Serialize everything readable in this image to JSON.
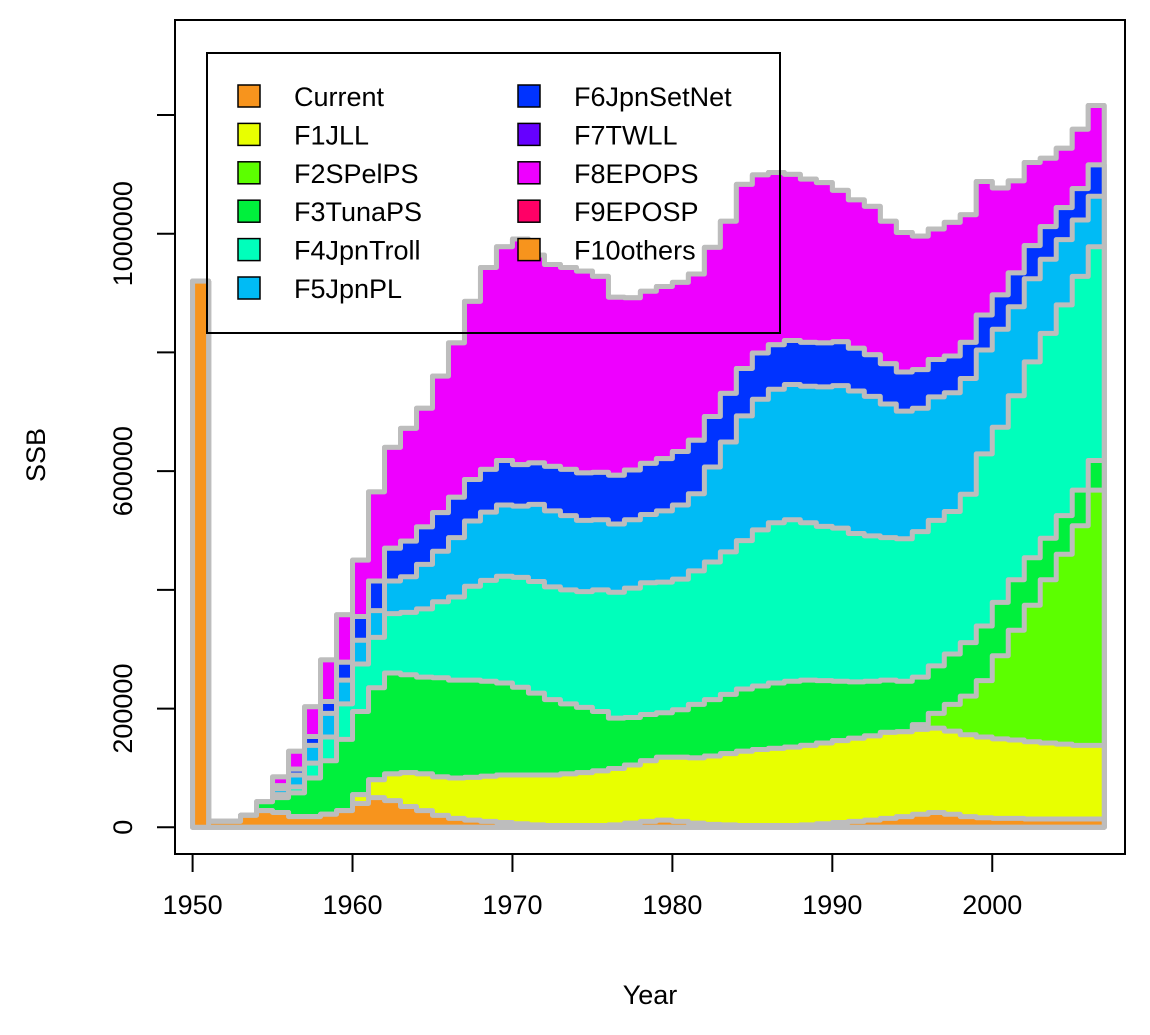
{
  "chart_data": {
    "type": "area",
    "stacked": true,
    "step": true,
    "title": "",
    "xlabel": "Year",
    "ylabel": "SSB",
    "xlim": [
      1948.9,
      2008.3
    ],
    "ylim": [
      -45000,
      1360000
    ],
    "x_ticks": [
      1950,
      1960,
      1970,
      1980,
      1990,
      2000
    ],
    "x_tick_labels": [
      "1950",
      "1960",
      "1970",
      "1980",
      "1990",
      "2000"
    ],
    "y_ticks": [
      0,
      200000,
      400000,
      600000,
      800000,
      1000000,
      1200000
    ],
    "y_tick_labels": [
      "0",
      "200000",
      "",
      "600000",
      "",
      "1000000",
      ""
    ],
    "outline_color": "#bdbdbd",
    "grid": false,
    "legend": {
      "placement": "top-left",
      "columns": 2,
      "entries": [
        "Current",
        "F1JLL",
        "F2SPelPS",
        "F3TunaPS",
        "F4JpnTroll",
        "F5JpnPL",
        "F6JpnSetNet",
        "F7TWLL",
        "F8EPOPS",
        "F9EPOSP",
        "F10others"
      ],
      "colors": [
        "#f7941d",
        "#e8ff00",
        "#5cff00",
        "#00f03c",
        "#00ffbb",
        "#00bbf5",
        "#0033ff",
        "#6600ff",
        "#ee00ff",
        "#ff0066",
        "#f7941d"
      ]
    },
    "x": [
      1950,
      1951,
      1952,
      1953,
      1954,
      1955,
      1956,
      1957,
      1958,
      1959,
      1960,
      1961,
      1962,
      1963,
      1964,
      1965,
      1966,
      1967,
      1968,
      1969,
      1970,
      1971,
      1972,
      1973,
      1974,
      1975,
      1976,
      1977,
      1978,
      1979,
      1980,
      1981,
      1982,
      1983,
      1984,
      1985,
      1986,
      1987,
      1988,
      1989,
      1990,
      1991,
      1992,
      1993,
      1994,
      1995,
      1996,
      1997,
      1998,
      1999,
      2000,
      2001,
      2002,
      2003,
      2004,
      2005,
      2006
    ],
    "series": [
      {
        "name": "Current",
        "values": [
          920000,
          0,
          0,
          0,
          0,
          0,
          0,
          0,
          0,
          0,
          0,
          0,
          0,
          0,
          0,
          0,
          0,
          0,
          0,
          0,
          0,
          0,
          0,
          0,
          0,
          0,
          0,
          0,
          0,
          0,
          0,
          0,
          0,
          0,
          0,
          0,
          0,
          0,
          0,
          0,
          0,
          0,
          0,
          0,
          0,
          0,
          0,
          0,
          0,
          0,
          0,
          0,
          0,
          0,
          0,
          0,
          0
        ]
      },
      {
        "name": "F10others",
        "values": [
          0,
          10000,
          10000,
          20000,
          28000,
          25000,
          18000,
          18000,
          22000,
          28000,
          40000,
          50000,
          45000,
          35000,
          28000,
          20000,
          15000,
          12000,
          10000,
          8000,
          6000,
          4000,
          3000,
          3000,
          3000,
          3000,
          4000,
          7000,
          10000,
          12000,
          10000,
          7000,
          5000,
          4000,
          3000,
          3000,
          3000,
          3000,
          4000,
          6000,
          8000,
          10000,
          12000,
          15000,
          18000,
          22000,
          25000,
          22000,
          18000,
          16000,
          15000,
          15000,
          14000,
          14000,
          14000,
          14000,
          14000
        ]
      },
      {
        "name": "F1JLL",
        "values": [
          0,
          0,
          0,
          0,
          0,
          0,
          0,
          0,
          0,
          0,
          15000,
          30000,
          45000,
          57000,
          62000,
          65000,
          68000,
          72000,
          76000,
          80000,
          82000,
          84000,
          85000,
          87000,
          89000,
          92000,
          95000,
          98000,
          102000,
          106000,
          108000,
          110000,
          115000,
          120000,
          125000,
          128000,
          130000,
          132000,
          134000,
          136000,
          138000,
          140000,
          142000,
          145000,
          143000,
          143000,
          142000,
          140000,
          138000,
          136000,
          134000,
          132000,
          130000,
          128000,
          126000,
          124000,
          124000
        ]
      },
      {
        "name": "F2SPelPS",
        "values": [
          0,
          0,
          0,
          0,
          0,
          0,
          0,
          0,
          0,
          0,
          0,
          0,
          0,
          0,
          0,
          0,
          0,
          0,
          0,
          0,
          0,
          0,
          0,
          0,
          0,
          0,
          0,
          0,
          0,
          0,
          0,
          0,
          0,
          0,
          0,
          0,
          0,
          0,
          0,
          0,
          0,
          0,
          0,
          0,
          0,
          8000,
          25000,
          45000,
          65000,
          95000,
          140000,
          185000,
          230000,
          275000,
          320000,
          370000,
          430000
        ]
      },
      {
        "name": "F3TunaPS",
        "values": [
          0,
          0,
          0,
          0,
          15000,
          25000,
          40000,
          65000,
          90000,
          120000,
          140000,
          155000,
          170000,
          165000,
          163000,
          167000,
          165000,
          164000,
          160000,
          155000,
          148000,
          138000,
          127000,
          118000,
          110000,
          100000,
          85000,
          80000,
          78000,
          75000,
          80000,
          90000,
          95000,
          100000,
          105000,
          107000,
          110000,
          111000,
          110000,
          105000,
          100000,
          95000,
          92000,
          88000,
          85000,
          80000,
          80000,
          85000,
          90000,
          92000,
          90000,
          85000,
          80000,
          70000,
          65000,
          60000,
          50000
        ]
      },
      {
        "name": "F4JpnTroll",
        "values": [
          0,
          0,
          0,
          0,
          0,
          5000,
          10000,
          25000,
          40000,
          60000,
          80000,
          85000,
          100000,
          105000,
          115000,
          128000,
          140000,
          158000,
          170000,
          180000,
          185000,
          188000,
          190000,
          192000,
          195000,
          205000,
          212000,
          218000,
          222000,
          220000,
          220000,
          225000,
          232000,
          240000,
          250000,
          263000,
          270000,
          272000,
          265000,
          260000,
          258000,
          250000,
          245000,
          240000,
          240000,
          245000,
          245000,
          240000,
          250000,
          290000,
          295000,
          310000,
          330000,
          345000,
          355000,
          360000,
          360000
        ]
      },
      {
        "name": "F5JpnPL",
        "values": [
          0,
          0,
          0,
          0,
          0,
          10000,
          20000,
          30000,
          40000,
          40000,
          40000,
          45000,
          55000,
          60000,
          75000,
          85000,
          100000,
          110000,
          115000,
          120000,
          120000,
          130000,
          128000,
          125000,
          120000,
          118000,
          115000,
          115000,
          115000,
          120000,
          125000,
          130000,
          160000,
          185000,
          210000,
          220000,
          225000,
          228000,
          230000,
          235000,
          240000,
          240000,
          235000,
          225000,
          215000,
          208000,
          208000,
          200000,
          195000,
          175000,
          165000,
          150000,
          140000,
          125000,
          110000,
          95000,
          85000
        ]
      },
      {
        "name": "F6JpnSetNet",
        "values": [
          0,
          0,
          0,
          0,
          0,
          5000,
          10000,
          15000,
          20000,
          30000,
          40000,
          50000,
          55000,
          60000,
          63000,
          65000,
          68000,
          70000,
          72000,
          75000,
          70000,
          70000,
          75000,
          78000,
          80000,
          80000,
          82000,
          84000,
          86000,
          88000,
          90000,
          90000,
          85000,
          82000,
          80000,
          78000,
          75000,
          74000,
          74000,
          74000,
          74000,
          72000,
          70000,
          68000,
          66000,
          65000,
          63000,
          62000,
          61000,
          59000,
          58000,
          57000,
          56000,
          55000,
          54000,
          53000,
          53000
        ]
      },
      {
        "name": "F7TWLL",
        "values": [
          0,
          0,
          0,
          0,
          0,
          0,
          0,
          0,
          0,
          0,
          0,
          0,
          0,
          0,
          0,
          0,
          0,
          0,
          0,
          0,
          0,
          0,
          0,
          0,
          0,
          0,
          0,
          0,
          0,
          0,
          0,
          0,
          0,
          0,
          0,
          0,
          0,
          0,
          0,
          0,
          0,
          0,
          0,
          0,
          0,
          0,
          0,
          0,
          0,
          0,
          0,
          0,
          0,
          0,
          0,
          0,
          0
        ]
      },
      {
        "name": "F8EPOPS",
        "values": [
          0,
          0,
          0,
          0,
          0,
          15000,
          30000,
          50000,
          70000,
          80000,
          95000,
          150000,
          170000,
          190000,
          200000,
          230000,
          260000,
          300000,
          340000,
          360000,
          380000,
          350000,
          340000,
          340000,
          340000,
          330000,
          300000,
          290000,
          290000,
          290000,
          285000,
          280000,
          285000,
          290000,
          310000,
          300000,
          290000,
          280000,
          275000,
          270000,
          255000,
          250000,
          250000,
          240000,
          235000,
          225000,
          220000,
          225000,
          215000,
          225000,
          180000,
          155000,
          140000,
          115000,
          100000,
          100000,
          100000
        ]
      },
      {
        "name": "F9EPOSP",
        "values": [
          0,
          0,
          0,
          0,
          0,
          0,
          0,
          0,
          0,
          0,
          0,
          0,
          0,
          0,
          0,
          0,
          0,
          0,
          0,
          0,
          0,
          0,
          0,
          0,
          0,
          0,
          0,
          0,
          0,
          0,
          0,
          0,
          0,
          0,
          0,
          0,
          0,
          0,
          0,
          0,
          0,
          0,
          0,
          0,
          0,
          0,
          0,
          0,
          0,
          0,
          0,
          0,
          0,
          0,
          0,
          0,
          0
        ]
      }
    ]
  }
}
